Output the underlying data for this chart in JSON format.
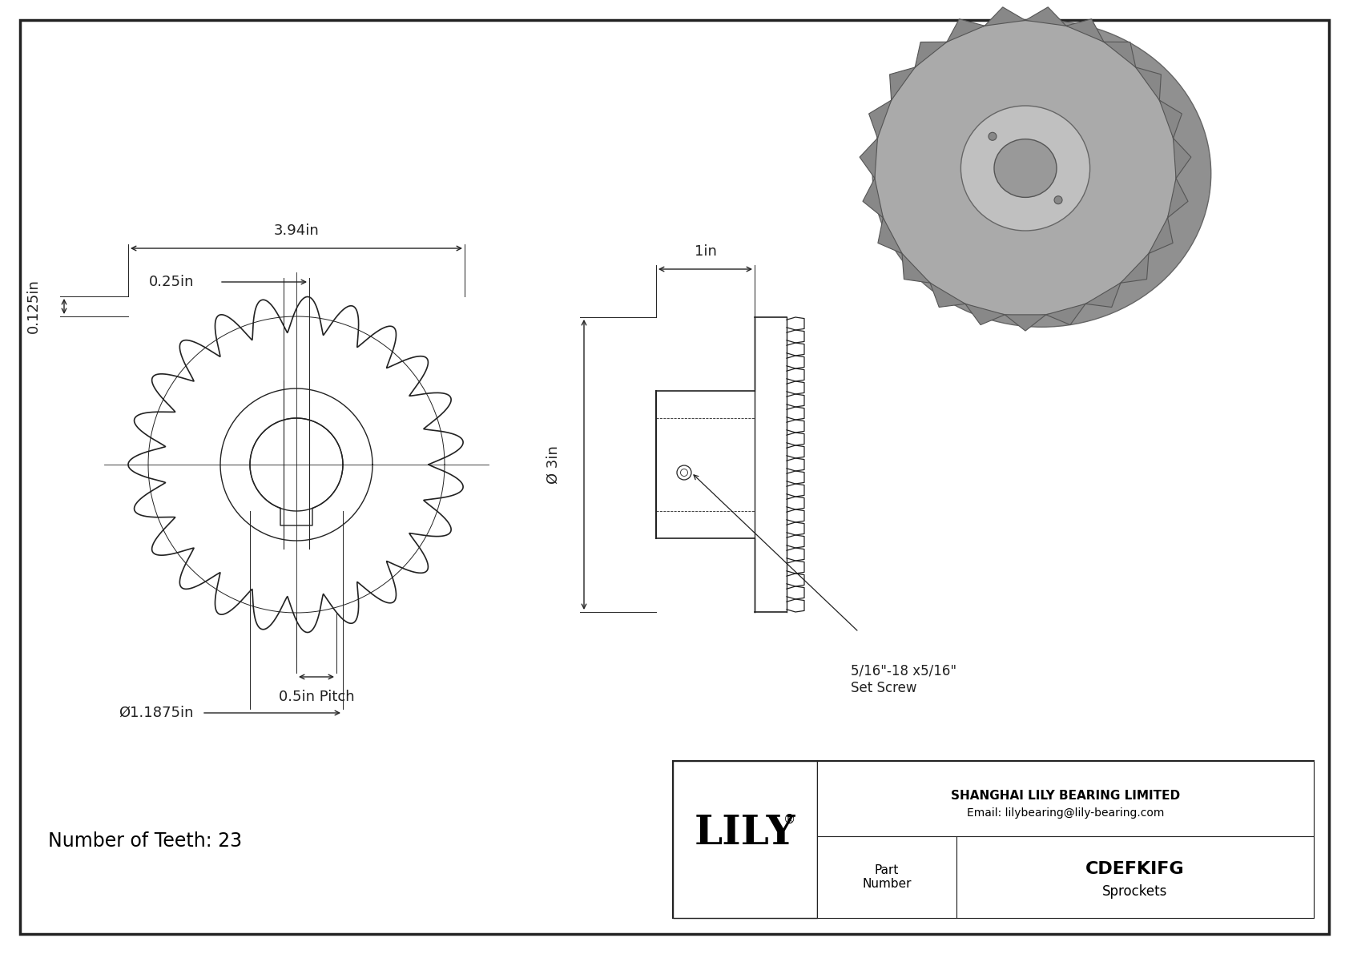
{
  "bg_color": "#ffffff",
  "border_color": "#222222",
  "line_color": "#222222",
  "dim_color": "#222222",
  "dim_394": "3.94in",
  "dim_025": "0.25in",
  "dim_0125": "0.125in",
  "dim_pitch": "0.5in Pitch",
  "dim_bore": "Ø1.1875in",
  "dim_1in": "1in",
  "dim_3in": "Ø 3in",
  "set_screw_label": "5/16\"-18 x5/16\"\nSet Screw",
  "num_teeth_label": "Number of Teeth: 23",
  "lily_label": "LILY",
  "lily_reg": "®",
  "company_name": "SHANGHAI LILY BEARING LIMITED",
  "email": "Email: lilybearing@lily-bearing.com",
  "part_number": "CDEFKIFG",
  "part_type": "Sprockets",
  "part_number_label": "Part\nNumber",
  "n_teeth": 23,
  "gray_3d": "#aaaaaa",
  "gray_3d_dark": "#888888",
  "gray_3d_light": "#cccccc",
  "gray_3d_bore": "#999999"
}
